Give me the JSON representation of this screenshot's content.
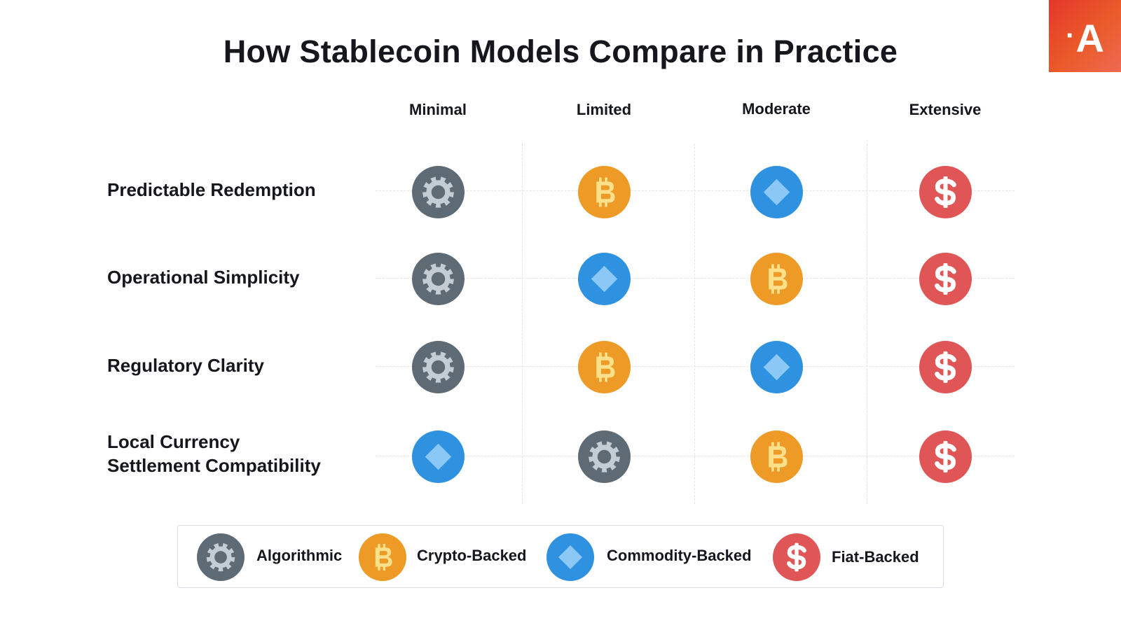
{
  "title": "How Stablecoin Models Compare in Practice",
  "logo": {
    "dot": "·",
    "letter": "A"
  },
  "columns": [
    "Minimal",
    "Limited",
    "Moderate",
    "Extensive"
  ],
  "rows": [
    {
      "label": "Predictable Redemption",
      "cells": [
        "gear-icon",
        "bitcoin-icon",
        "diamond-icon",
        "dollar-icon"
      ]
    },
    {
      "label": "Operational Simplicity",
      "cells": [
        "gear-icon",
        "diamond-icon",
        "bitcoin-icon",
        "dollar-icon"
      ]
    },
    {
      "label": "Regulatory Clarity",
      "cells": [
        "gear-icon",
        "bitcoin-icon",
        "diamond-icon",
        "dollar-icon"
      ]
    },
    {
      "label": "Local Currency\nSettlement Compatibility",
      "cells": [
        "diamond-icon",
        "gear-icon",
        "bitcoin-icon",
        "dollar-icon"
      ]
    }
  ],
  "legend": [
    {
      "icon": "gear-icon",
      "label": "Algorithmic"
    },
    {
      "icon": "bitcoin-icon",
      "label": "Crypto-Backed"
    },
    {
      "icon": "diamond-icon",
      "label": "Commodity-Backed"
    },
    {
      "icon": "dollar-icon",
      "label": "Fiat-Backed"
    }
  ],
  "colors": {
    "algorithmic": "#5f6b74",
    "crypto": "#ee9a27",
    "commodity": "#2f92e0",
    "fiat": "#e05555",
    "accent": "#e8452c"
  }
}
